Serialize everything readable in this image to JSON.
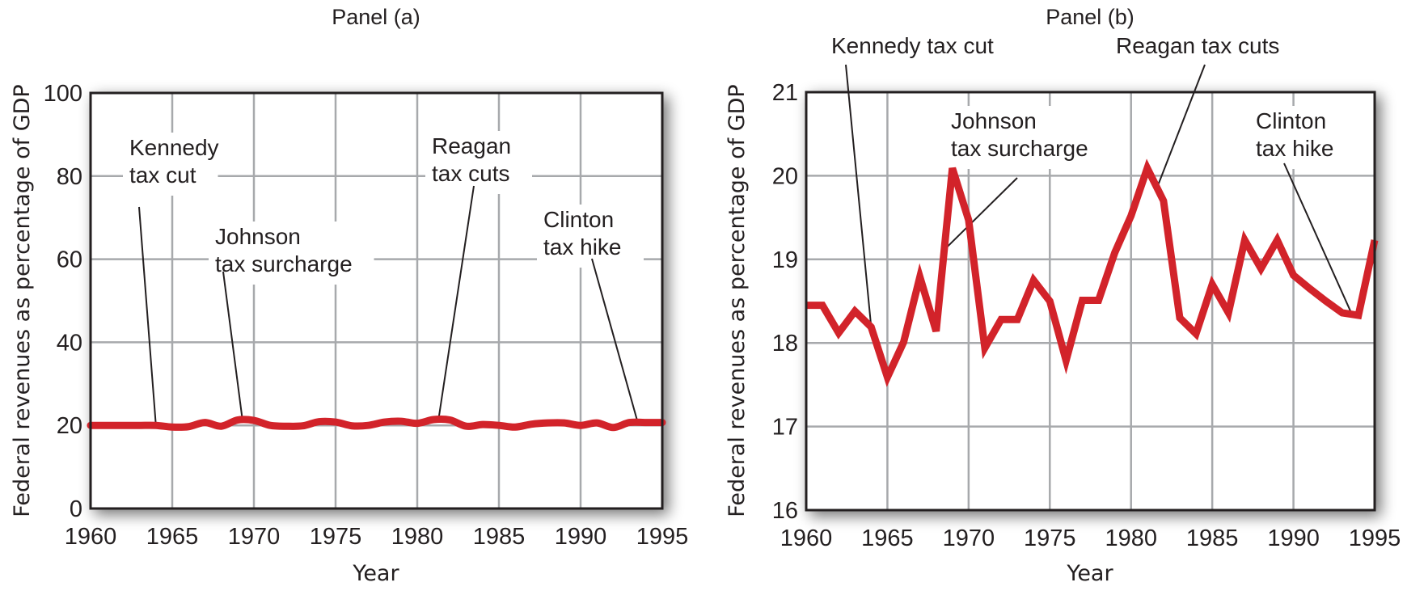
{
  "chart_data": [
    {
      "type": "line",
      "panel": "a",
      "title": "Panel (a)",
      "xlabel": "Year",
      "ylabel": "Federal revenues as percentage of GDP",
      "xlim": [
        1960,
        1995
      ],
      "ylim": [
        0,
        100
      ],
      "x_ticks": [
        "1960",
        "1965",
        "1970",
        "1975",
        "1980",
        "1985",
        "1990",
        "1995"
      ],
      "y_ticks": [
        "0",
        "20",
        "40",
        "60",
        "80",
        "100"
      ],
      "grid": true,
      "color": "#d2232a",
      "x": [
        1960,
        1961,
        1962,
        1963,
        1964,
        1965,
        1966,
        1967,
        1968,
        1969,
        1970,
        1971,
        1972,
        1973,
        1974,
        1975,
        1976,
        1977,
        1978,
        1979,
        1980,
        1981,
        1982,
        1983,
        1984,
        1985,
        1986,
        1987,
        1988,
        1989,
        1990,
        1991,
        1992,
        1993,
        1994,
        1995
      ],
      "values": [
        20.0,
        20.0,
        20.0,
        20.0,
        20.0,
        19.6,
        19.7,
        20.7,
        19.8,
        21.3,
        21.2,
        20.0,
        19.8,
        19.9,
        20.9,
        20.8,
        19.9,
        20.0,
        20.8,
        21.0,
        20.5,
        21.4,
        21.3,
        19.8,
        20.2,
        20.0,
        19.6,
        20.3,
        20.6,
        20.6,
        20.0,
        20.6,
        19.5,
        20.7,
        20.7,
        20.7
      ],
      "annotations": [
        {
          "lines": [
            "Kennedy",
            "tax cut"
          ],
          "year": 1964
        },
        {
          "lines": [
            "Johnson",
            "tax surcharge"
          ],
          "year": 1969.3
        },
        {
          "lines": [
            "Reagan",
            "tax cuts"
          ],
          "year": 1981.3
        },
        {
          "lines": [
            "Clinton",
            "tax hike"
          ],
          "year": 1993.5
        }
      ]
    },
    {
      "type": "line",
      "panel": "b",
      "title": "Panel (b)",
      "xlabel": "Year",
      "ylabel": "Federal revenues as percentage of GDP",
      "xlim": [
        1960,
        1995
      ],
      "ylim": [
        16,
        21
      ],
      "x_ticks": [
        "1960",
        "1965",
        "1970",
        "1975",
        "1980",
        "1985",
        "1990",
        "1995"
      ],
      "y_ticks": [
        "16",
        "17",
        "18",
        "19",
        "20",
        "21"
      ],
      "grid": true,
      "color": "#d2232a",
      "x": [
        1960,
        1961,
        1962,
        1963,
        1964,
        1965,
        1966,
        1967,
        1968,
        1969,
        1970,
        1971,
        1972,
        1973,
        1974,
        1975,
        1976,
        1977,
        1978,
        1979,
        1980,
        1981,
        1982,
        1983,
        1984,
        1985,
        1986,
        1987,
        1988,
        1989,
        1990,
        1991,
        1992,
        1993,
        1994,
        1995
      ],
      "values": [
        18.45,
        18.45,
        18.12,
        18.38,
        18.19,
        17.59,
        18.01,
        18.79,
        18.14,
        20.09,
        19.47,
        17.94,
        18.28,
        18.28,
        18.75,
        18.5,
        17.79,
        18.51,
        18.51,
        19.08,
        19.52,
        20.09,
        19.7,
        18.3,
        18.11,
        18.7,
        18.36,
        19.23,
        18.89,
        19.23,
        18.81,
        18.65,
        18.5,
        18.36,
        18.33,
        19.23
      ],
      "annotations": [
        {
          "lines": [
            "Kennedy tax cut"
          ],
          "year": 1964
        },
        {
          "lines": [
            "Johnson",
            "tax surcharge"
          ],
          "year": 1968.5
        },
        {
          "lines": [
            "Reagan tax cuts"
          ],
          "year": 1981.6
        },
        {
          "lines": [
            "Clinton",
            "tax hike"
          ],
          "year": 1993.6
        }
      ]
    }
  ]
}
